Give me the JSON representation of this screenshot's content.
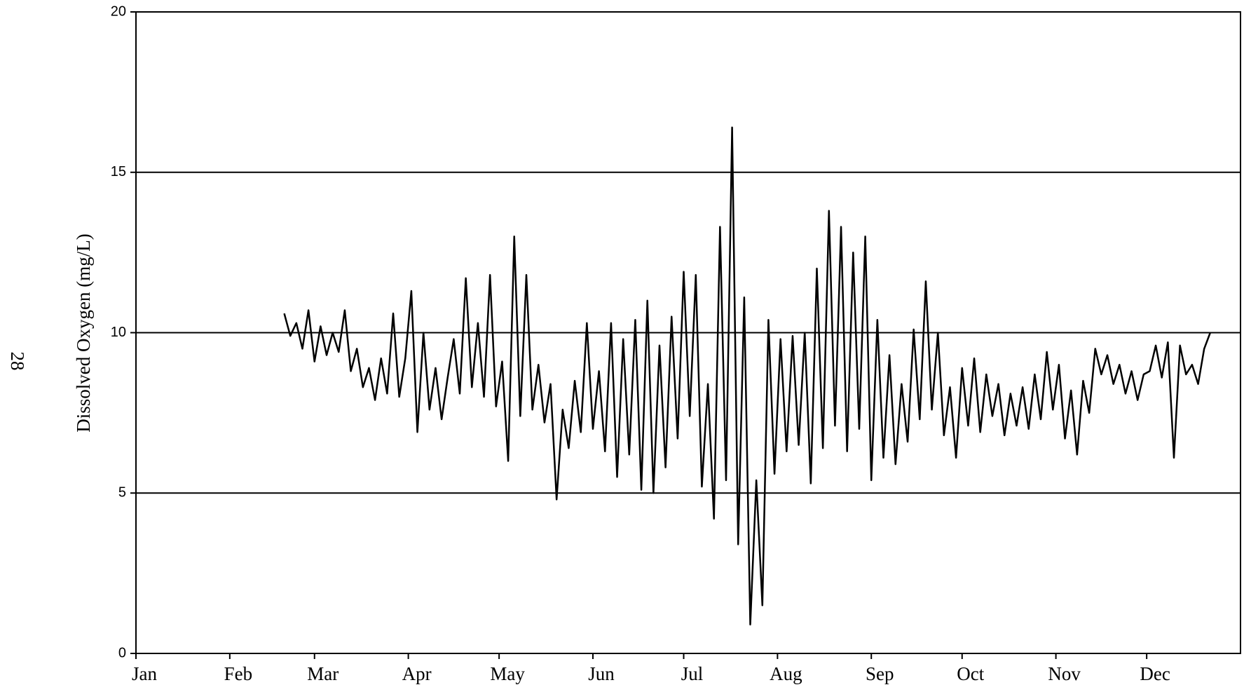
{
  "page_number": "28",
  "chart_data": {
    "type": "line",
    "ylabel": "Dissolved Oxygen (mg/L)",
    "color": "#000000",
    "grid": true,
    "xlim": [
      0,
      365
    ],
    "xticks": [
      {
        "value": 0,
        "label": "Jan"
      },
      {
        "value": 31,
        "label": "Feb"
      },
      {
        "value": 59,
        "label": "Mar"
      },
      {
        "value": 90,
        "label": "Apr"
      },
      {
        "value": 120,
        "label": "May"
      },
      {
        "value": 151,
        "label": "Jun"
      },
      {
        "value": 181,
        "label": "Jul"
      },
      {
        "value": 212,
        "label": "Aug"
      },
      {
        "value": 243,
        "label": "Sep"
      },
      {
        "value": 273,
        "label": "Oct"
      },
      {
        "value": 304,
        "label": "Nov"
      },
      {
        "value": 334,
        "label": "Dec"
      }
    ],
    "ylim": [
      0,
      20
    ],
    "yticks": [
      0,
      5,
      10,
      15,
      20
    ],
    "x": [
      49,
      51,
      53,
      55,
      57,
      59,
      61,
      63,
      65,
      67,
      69,
      71,
      73,
      75,
      77,
      79,
      81,
      83,
      85,
      87,
      89,
      91,
      93,
      95,
      97,
      99,
      101,
      103,
      105,
      107,
      109,
      111,
      113,
      115,
      117,
      119,
      121,
      123,
      125,
      127,
      129,
      131,
      133,
      135,
      137,
      139,
      141,
      143,
      145,
      147,
      149,
      151,
      153,
      155,
      157,
      159,
      161,
      163,
      165,
      167,
      169,
      171,
      173,
      175,
      177,
      179,
      181,
      183,
      185,
      187,
      189,
      191,
      193,
      195,
      197,
      199,
      201,
      203,
      205,
      207,
      209,
      211,
      213,
      215,
      217,
      219,
      221,
      223,
      225,
      227,
      229,
      231,
      233,
      235,
      237,
      239,
      241,
      243,
      245,
      247,
      249,
      251,
      253,
      255,
      257,
      259,
      261,
      263,
      265,
      267,
      269,
      271,
      273,
      275,
      277,
      279,
      281,
      283,
      285,
      287,
      289,
      291,
      293,
      295,
      297,
      299,
      301,
      303,
      305,
      307,
      309,
      311,
      313,
      315,
      317,
      319,
      321,
      323,
      325,
      327,
      329,
      331,
      333,
      335,
      337,
      339,
      341,
      343,
      345,
      347,
      349,
      351,
      353,
      355
    ],
    "values": [
      10.6,
      9.9,
      10.3,
      9.5,
      10.7,
      9.1,
      10.2,
      9.3,
      10.0,
      9.4,
      10.7,
      8.8,
      9.5,
      8.3,
      8.9,
      7.9,
      9.2,
      8.1,
      10.6,
      8.0,
      9.2,
      11.3,
      6.9,
      10.0,
      7.6,
      8.9,
      7.3,
      8.6,
      9.8,
      8.1,
      11.7,
      8.3,
      10.3,
      8.0,
      11.8,
      7.7,
      9.1,
      6.0,
      13.0,
      7.4,
      11.8,
      7.6,
      9.0,
      7.2,
      8.4,
      4.8,
      7.6,
      6.4,
      8.5,
      6.9,
      10.3,
      7.0,
      8.8,
      6.3,
      10.3,
      5.5,
      9.8,
      6.2,
      10.4,
      5.1,
      11.0,
      5.0,
      9.6,
      5.8,
      10.5,
      6.7,
      11.9,
      7.4,
      11.8,
      5.2,
      8.4,
      4.2,
      13.3,
      5.4,
      16.4,
      3.4,
      11.1,
      0.9,
      5.4,
      1.5,
      10.4,
      5.6,
      9.8,
      6.3,
      9.9,
      6.5,
      10.0,
      5.3,
      12.0,
      6.4,
      13.8,
      7.1,
      13.3,
      6.3,
      12.5,
      7.0,
      13.0,
      5.4,
      10.4,
      6.1,
      9.3,
      5.9,
      8.4,
      6.6,
      10.1,
      7.3,
      11.6,
      7.6,
      10.0,
      6.8,
      8.3,
      6.1,
      8.9,
      7.1,
      9.2,
      6.9,
      8.7,
      7.4,
      8.4,
      6.8,
      8.1,
      7.1,
      8.3,
      7.0,
      8.7,
      7.3,
      9.4,
      7.6,
      9.0,
      6.7,
      8.2,
      6.2,
      8.5,
      7.5,
      9.5,
      8.7,
      9.3,
      8.4,
      9.0,
      8.1,
      8.8,
      7.9,
      8.7,
      8.8,
      9.6,
      8.6,
      9.7,
      6.1,
      9.6,
      8.7,
      9.0,
      8.4,
      9.5,
      10.0
    ]
  }
}
